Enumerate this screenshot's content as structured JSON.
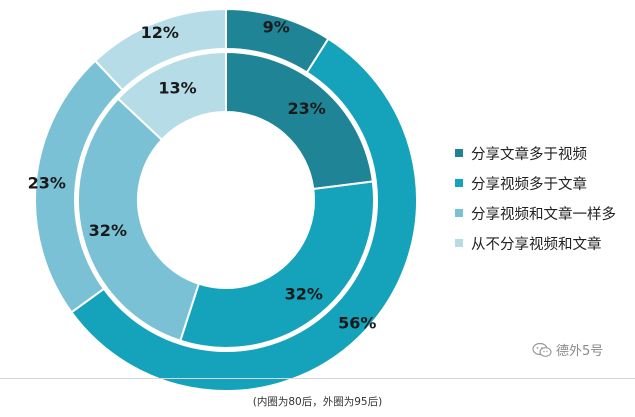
{
  "chart_data": {
    "type": "pie",
    "categories": [
      "分享文章多于视频",
      "分享视频多于文章",
      "分享视频和文章一样多",
      "从不分享视频和文章"
    ],
    "series": [
      {
        "name": "80后",
        "values": [
          23,
          32,
          32,
          13
        ]
      },
      {
        "name": "95后",
        "values": [
          9,
          56,
          23,
          12
        ]
      }
    ],
    "value_labels": {
      "inner": [
        "23%",
        "32%",
        "32%",
        "13%"
      ],
      "outer": [
        "9%",
        "56%",
        "23%",
        "12%"
      ]
    },
    "colors": [
      "#1f8596",
      "#15a2bb",
      "#7bc1d6",
      "#b6dce8"
    ],
    "legend_position": "right",
    "note": "(内圈为80后，外圈为95后)"
  },
  "watermark": {
    "text": "德外5号",
    "icon": "wechat-icon"
  }
}
